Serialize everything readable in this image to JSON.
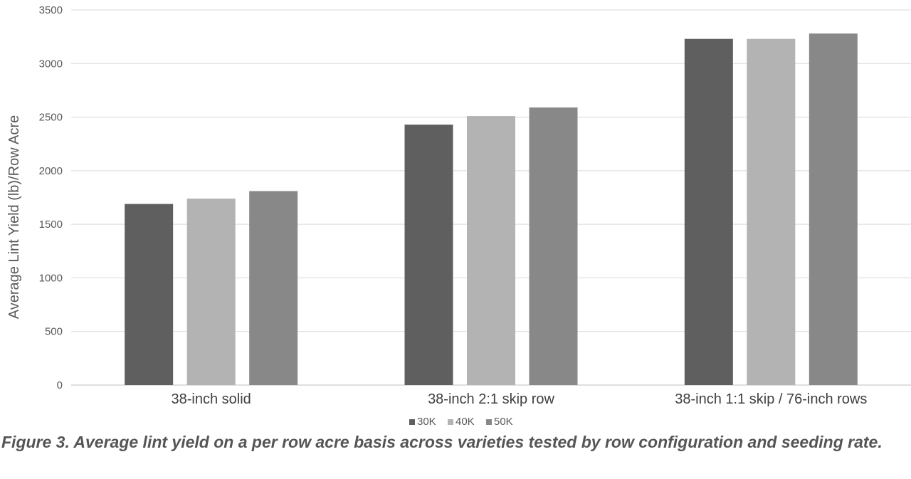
{
  "chart_data": {
    "type": "bar",
    "categories": [
      "38-inch solid",
      "38-inch 2:1 skip row",
      "38-inch 1:1 skip / 76-inch rows"
    ],
    "series": [
      {
        "name": "30K",
        "color": "#5f5f5f",
        "values": [
          1690,
          2430,
          3230
        ]
      },
      {
        "name": "40K",
        "color": "#b3b3b3",
        "values": [
          1740,
          2510,
          3230
        ]
      },
      {
        "name": "50K",
        "color": "#888888",
        "values": [
          1810,
          2590,
          3280
        ]
      }
    ],
    "ylabel": "Average Lint Yield (lb)/Row Acre",
    "ylim": [
      0,
      3500
    ],
    "yticks": [
      0,
      500,
      1000,
      1500,
      2000,
      2500,
      3000,
      3500
    ],
    "grid": true,
    "legend": "bottom"
  },
  "caption": "Figure 3. Average lint yield on a per row acre basis across varieties tested by row configuration and seeding rate."
}
